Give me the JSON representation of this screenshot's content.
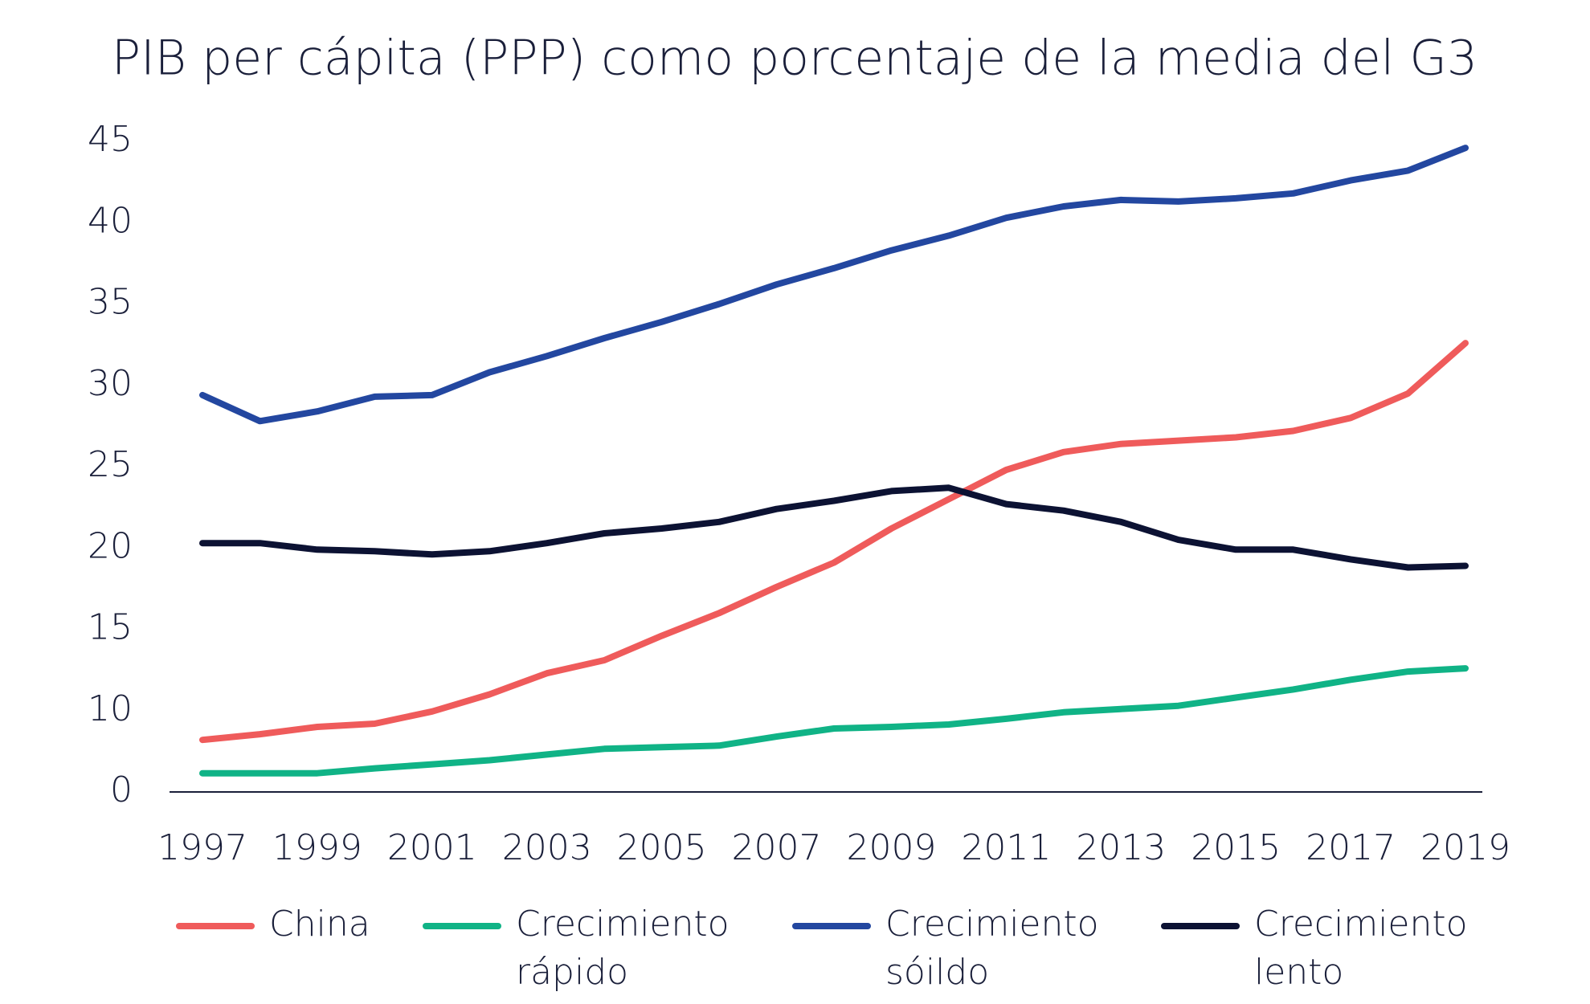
{
  "chart_data": {
    "type": "line",
    "title": "PIB per cápita (PPP) como porcentaje de la media del G3",
    "categories": [
      "1997",
      null,
      "1999",
      null,
      "2001",
      null,
      "2003",
      null,
      "2005",
      null,
      "2007",
      null,
      "2009",
      null,
      "2011",
      null,
      "2013",
      null,
      "2015",
      null,
      "2017",
      null,
      "2019"
    ],
    "series": [
      {
        "name": "China",
        "color": "#ef5b5b",
        "values": [
          6.4,
          7.1,
          8.0,
          8.4,
          9.9,
          11.0,
          12.3,
          13.1,
          14.6,
          16.0,
          17.6,
          19.1,
          21.2,
          23.0,
          24.8,
          25.9,
          26.4,
          26.6,
          26.8,
          27.2,
          28.0,
          29.5,
          32.6
        ]
      },
      {
        "name": "Crecimiento rápido",
        "color": "#10b386",
        "values": [
          2.3,
          2.3,
          2.3,
          2.9,
          3.4,
          3.9,
          4.6,
          5.3,
          5.5,
          5.7,
          6.8,
          7.8,
          8.0,
          8.3,
          9.0,
          9.8,
          10.1,
          10.3,
          10.8,
          11.3,
          11.9,
          12.4,
          12.6
        ]
      },
      {
        "name": "Crecimiento sóildo",
        "color": "#2347a0",
        "values": [
          29.4,
          27.8,
          28.4,
          29.3,
          29.4,
          30.8,
          31.8,
          32.9,
          33.9,
          35.0,
          36.2,
          37.2,
          38.3,
          39.2,
          40.3,
          41.0,
          41.4,
          41.3,
          41.5,
          41.8,
          42.6,
          43.2,
          44.6
        ]
      },
      {
        "name": "Crecimiento lento",
        "color": "#0c1233",
        "values": [
          20.3,
          20.3,
          19.9,
          19.8,
          19.6,
          19.8,
          20.3,
          20.9,
          21.2,
          21.6,
          22.4,
          22.9,
          23.5,
          23.7,
          22.7,
          22.3,
          21.6,
          20.5,
          19.9,
          19.9,
          19.3,
          18.8,
          18.9
        ]
      }
    ],
    "ylim": [
      0,
      45
    ],
    "yticks": [
      0,
      10,
      15,
      20,
      25,
      30,
      35,
      40,
      45
    ],
    "legend": "bottom"
  }
}
